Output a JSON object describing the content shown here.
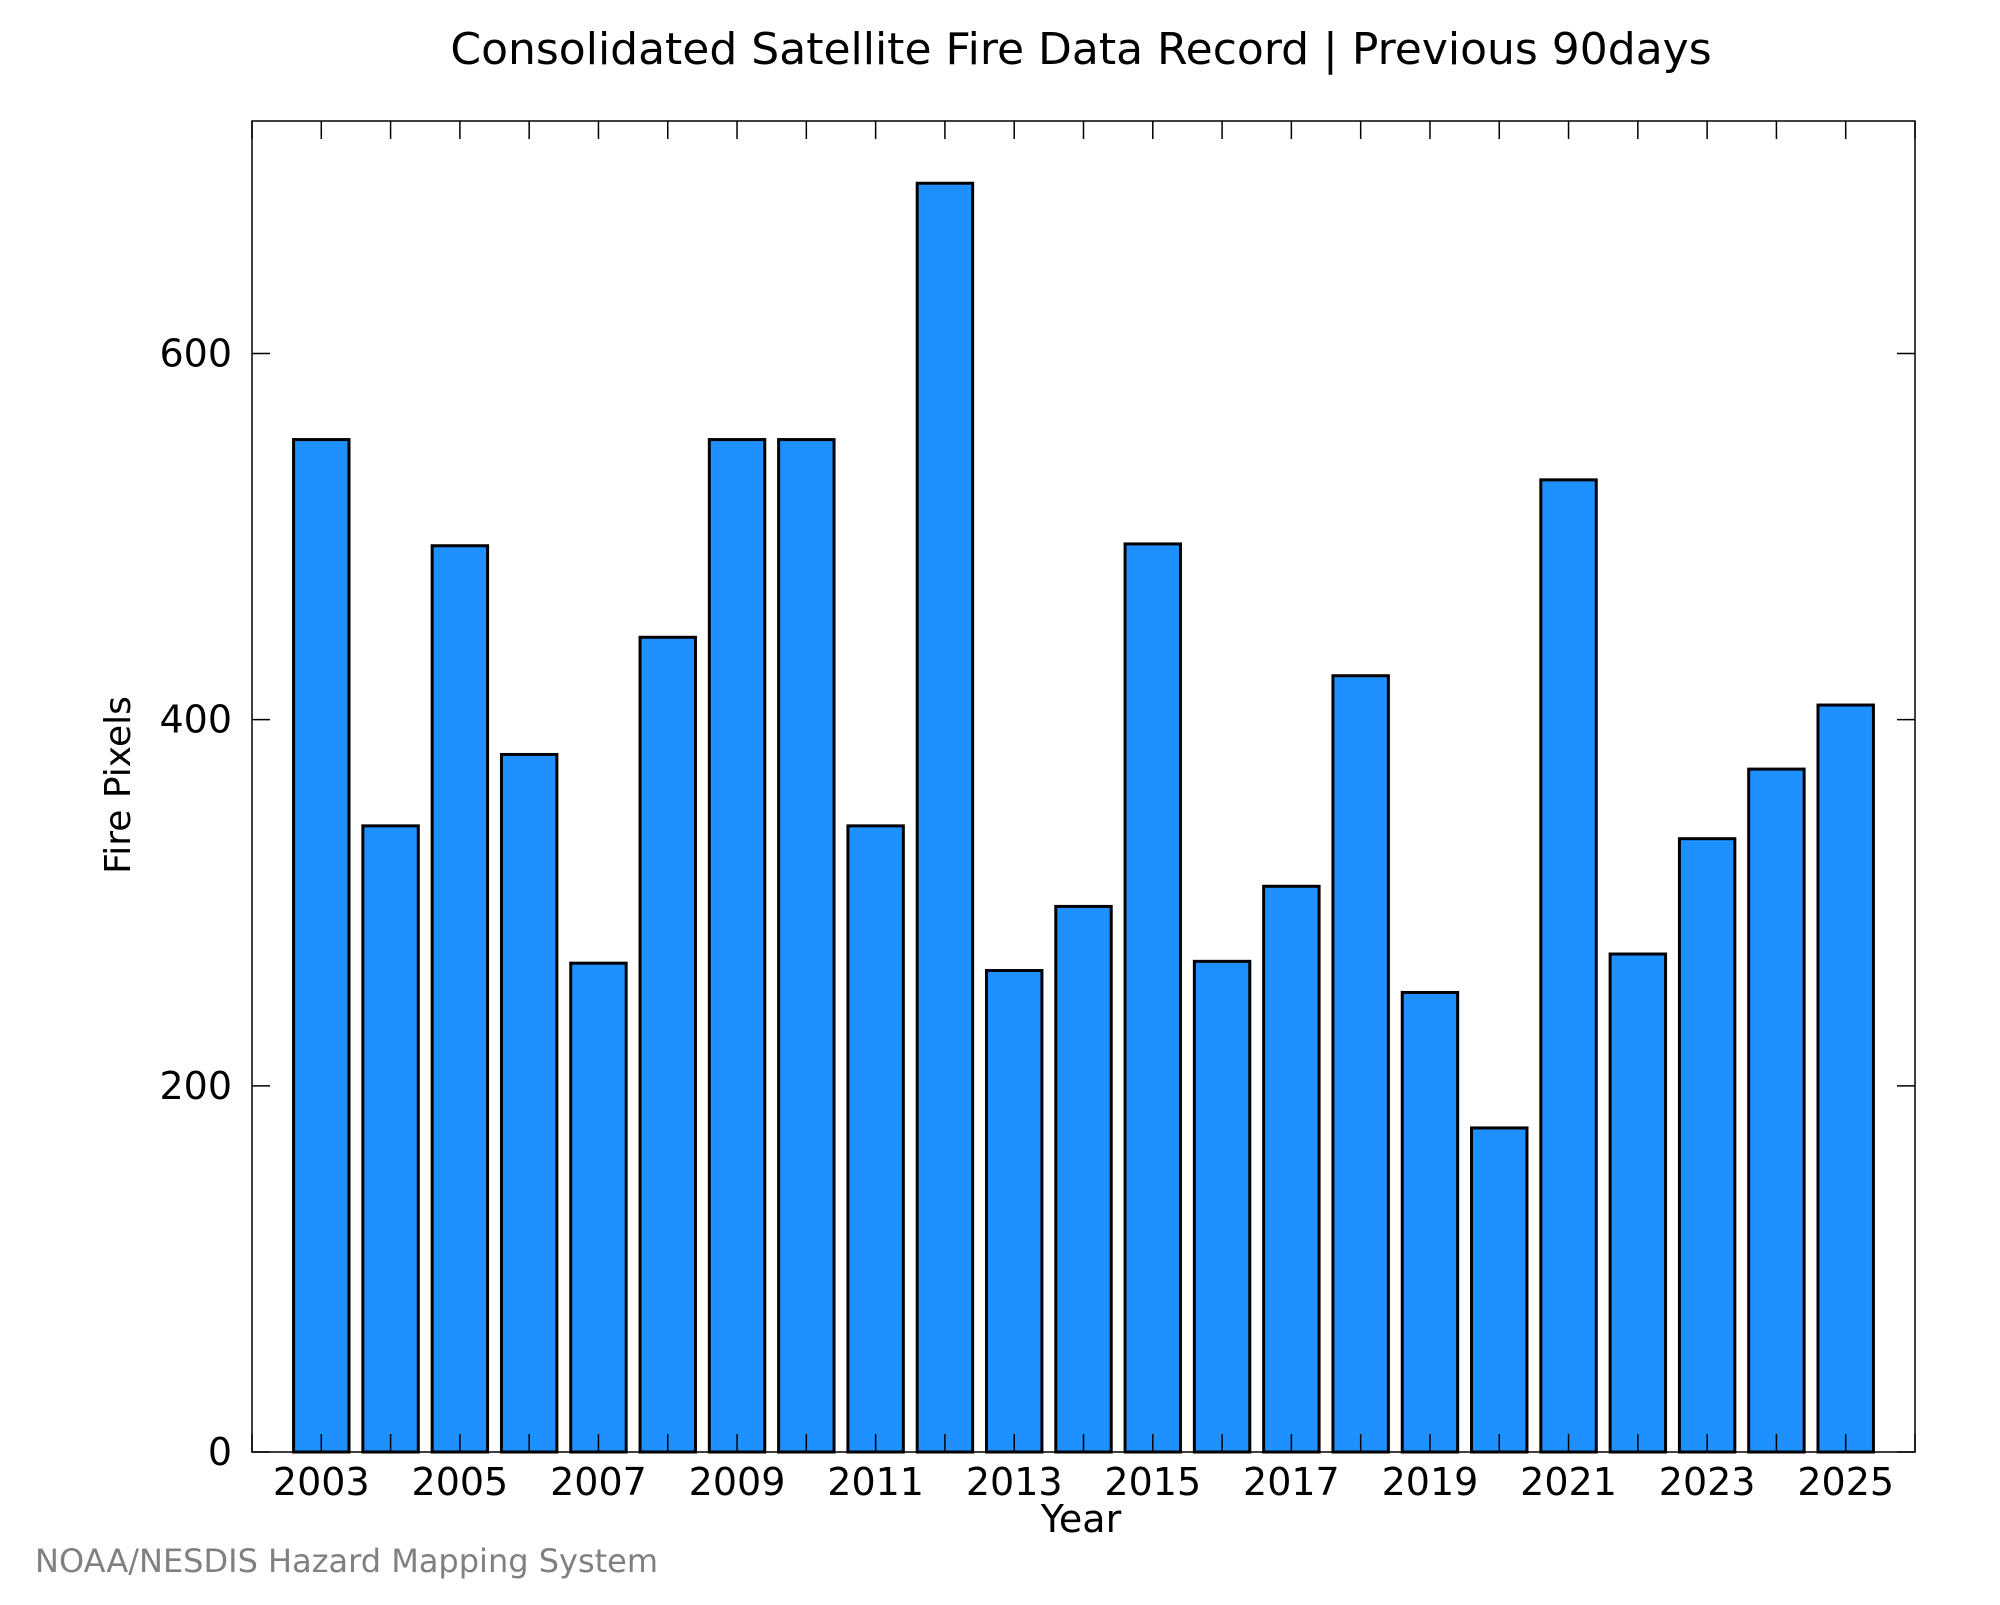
{
  "chart_data": {
    "type": "bar",
    "title": "Consolidated Satellite Fire Data Record | Previous 90days",
    "xlabel": "Year",
    "ylabel": "Fire Pixels",
    "x_tick_labels": [
      "2003",
      "2005",
      "2007",
      "2009",
      "2011",
      "2013",
      "2015",
      "2017",
      "2019",
      "2021",
      "2023",
      "2025"
    ],
    "y_tick_labels": [
      "0",
      "200",
      "400",
      "600"
    ],
    "y_ticks": [
      0,
      200,
      400,
      600
    ],
    "categories": [
      "2003",
      "2004",
      "2005",
      "2006",
      "2007",
      "2008",
      "2009",
      "2010",
      "2011",
      "2012",
      "2013",
      "2014",
      "2015",
      "2016",
      "2017",
      "2018",
      "2019",
      "2020",
      "2021",
      "2022",
      "2023",
      "2024",
      "2025"
    ],
    "values": [
      553,
      342,
      495,
      381,
      267,
      445,
      553,
      553,
      342,
      693,
      263,
      298,
      496,
      268,
      309,
      424,
      251,
      177,
      531,
      272,
      335,
      373,
      408
    ],
    "xlim": [
      2002,
      2026
    ],
    "ylim": [
      0,
      727
    ],
    "bar_color": "#1e90ff",
    "grid": false,
    "legend": "none"
  },
  "footer": {
    "credit": "NOAA/NESDIS Hazard Mapping System"
  }
}
